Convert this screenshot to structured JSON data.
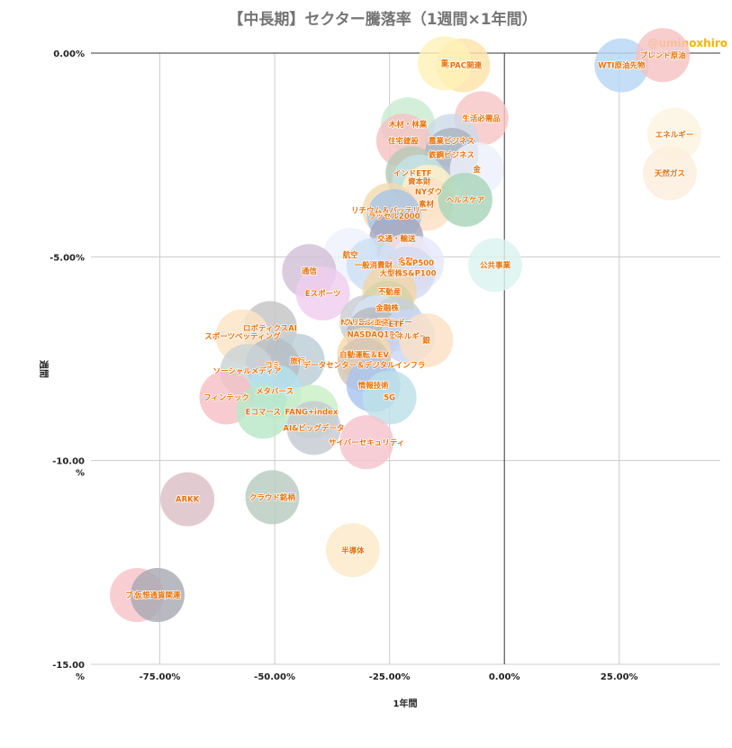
{
  "watermark": "@uminoxhiro",
  "chart_data": {
    "type": "scatter",
    "title": "【中長期】セクター騰落率（1週間×1年間）",
    "xlabel": "1年間",
    "ylabel": "週間",
    "xlim": [
      -0.9,
      0.47
    ],
    "ylim": [
      -15,
      0
    ],
    "x_ticks": [
      {
        "value": -0.75,
        "label": "-75.00%"
      },
      {
        "value": -0.5,
        "label": "-50.00%"
      },
      {
        "value": -0.25,
        "label": "-25.00%"
      },
      {
        "value": 0.0,
        "label": "0.00%"
      },
      {
        "value": 0.25,
        "label": "25.00%"
      }
    ],
    "y_ticks": [
      {
        "value": 0,
        "label": [
          "0.00%"
        ]
      },
      {
        "value": -5,
        "label": [
          "-5.00%"
        ]
      },
      {
        "value": -10,
        "label": [
          "-10.00",
          "%"
        ]
      },
      {
        "value": -15,
        "label": [
          "-15.00",
          "%"
        ]
      }
    ],
    "points": [
      {
        "label": "SPAC関連",
        "x": -0.09,
        "y": -0.3,
        "color": "#ffe3a8"
      },
      {
        "label": "重",
        "x": -0.13,
        "y": -0.25,
        "color": "#fff1b8"
      },
      {
        "label": "WTI原油先物",
        "x": 0.255,
        "y": -0.3,
        "color": "#b7d7f7"
      },
      {
        "label": "ブレント原油",
        "x": 0.345,
        "y": -0.05,
        "color": "#f5c2c2"
      },
      {
        "label": "木材・林業",
        "x": -0.21,
        "y": -1.75,
        "color": "#c9ebd2"
      },
      {
        "label": "生活必需品",
        "x": -0.05,
        "y": -1.6,
        "color": "#f8c6c6"
      },
      {
        "label": "エネルギー",
        "x": 0.37,
        "y": -2.0,
        "color": "#fdf4e0"
      },
      {
        "label": "農業ビジネス",
        "x": -0.115,
        "y": -2.15,
        "color": "#cddae6"
      },
      {
        "label": "住宅建設",
        "x": -0.22,
        "y": -2.15,
        "color": "#f5c2c2"
      },
      {
        "label": "鉄鋼ビジネス",
        "x": -0.115,
        "y": -2.5,
        "color": "#a8b3bf"
      },
      {
        "label": "金",
        "x": -0.06,
        "y": -2.85,
        "color": "#eef0fb"
      },
      {
        "label": "天然ガス",
        "x": 0.36,
        "y": -2.95,
        "color": "#fdeedd"
      },
      {
        "label": "インドETF",
        "x": -0.2,
        "y": -2.95,
        "color": "#b7c9b7"
      },
      {
        "label": "資本財",
        "x": -0.185,
        "y": -3.15,
        "color": "#c5e3e6"
      },
      {
        "label": "NYダウ",
        "x": -0.165,
        "y": -3.4,
        "color": "#fff1c7"
      },
      {
        "label": "素材",
        "x": -0.17,
        "y": -3.7,
        "color": "#fde0c6"
      },
      {
        "label": "ヘルスケア",
        "x": -0.085,
        "y": -3.6,
        "color": "#a8d4b8"
      },
      {
        "label": "リチウム＆バッテリー",
        "x": -0.25,
        "y": -3.85,
        "color": "#f2dcb0"
      },
      {
        "label": "ラッセル2000",
        "x": -0.24,
        "y": -4.0,
        "color": "#a8c4e8"
      },
      {
        "label": "交通・輸送",
        "x": -0.235,
        "y": -4.55,
        "color": "#a3a7bf"
      },
      {
        "label": "航空",
        "x": -0.335,
        "y": -4.95,
        "color": "#eef1fb"
      },
      {
        "label": "金融",
        "x": -0.215,
        "y": -5.1,
        "color": "#fde2e2"
      },
      {
        "label": "S&P500",
        "x": -0.19,
        "y": -5.15,
        "color": "#e6e9fb"
      },
      {
        "label": "一般消費財",
        "x": -0.285,
        "y": -5.2,
        "color": "#cde0f5"
      },
      {
        "label": "公共事業",
        "x": -0.02,
        "y": -5.2,
        "color": "#daf3ef"
      },
      {
        "label": "大型株S&P100",
        "x": -0.21,
        "y": -5.4,
        "color": "#d7dbef"
      },
      {
        "label": "通信",
        "x": -0.425,
        "y": -5.35,
        "color": "#d2bfd7"
      },
      {
        "label": "不動産",
        "x": -0.25,
        "y": -5.85,
        "color": "#f2d5a8"
      },
      {
        "label": "Eスポーツ",
        "x": -0.395,
        "y": -5.9,
        "color": "#f0cdef"
      },
      {
        "label": "金融株",
        "x": -0.255,
        "y": -6.25,
        "color": "#d7d3a6"
      },
      {
        "label": "NASDAQ総合",
        "x": -0.3,
        "y": -6.6,
        "color": "#c9cdd2"
      },
      {
        "label": "クリーンエネルギー",
        "x": -0.275,
        "y": -6.6,
        "color": "#d7e3f7"
      },
      {
        "label": "ETF",
        "x": -0.235,
        "y": -6.65,
        "color": "#c5d1d6"
      },
      {
        "label": "ロボティクスAI",
        "x": -0.51,
        "y": -6.75,
        "color": "#c5c5c5"
      },
      {
        "label": "NASDAQ100",
        "x": -0.285,
        "y": -6.9,
        "color": "#b7bbc0"
      },
      {
        "label": "エネルギー",
        "x": -0.21,
        "y": -6.95,
        "color": "#cad7f5"
      },
      {
        "label": "銀",
        "x": -0.17,
        "y": -7.05,
        "color": "#fbe1c4"
      },
      {
        "label": "スポーツベッティング",
        "x": -0.57,
        "y": -6.95,
        "color": "#fde4c6"
      },
      {
        "label": "自動運転＆EV",
        "x": -0.305,
        "y": -7.4,
        "color": "#f7d9a8"
      },
      {
        "label": "旅行",
        "x": -0.45,
        "y": -7.55,
        "color": "#bccdd6"
      },
      {
        "label": "データセンター＆デジタルインフラ",
        "x": -0.305,
        "y": -7.65,
        "color": "#d4c4b4"
      },
      {
        "label": "コミ",
        "x": -0.505,
        "y": -7.65,
        "color": "#b6bdc5"
      },
      {
        "label": "ソーシャルメディア",
        "x": -0.56,
        "y": -7.8,
        "color": "#c9d3d6"
      },
      {
        "label": "情報技術",
        "x": -0.285,
        "y": -8.15,
        "color": "#a8c5f0"
      },
      {
        "label": "メタバース",
        "x": -0.5,
        "y": -8.3,
        "color": "#b4e3ef"
      },
      {
        "label": "5G",
        "x": -0.25,
        "y": -8.45,
        "color": "#bde1e8"
      },
      {
        "label": "フィンテック",
        "x": -0.605,
        "y": -8.45,
        "color": "#f5c0c6"
      },
      {
        "label": "Eコマース",
        "x": -0.525,
        "y": -8.8,
        "color": "#b8e8c6"
      },
      {
        "label": "FANG+index",
        "x": -0.42,
        "y": -8.8,
        "color": "#c9efc6"
      },
      {
        "label": "AI&ビッグデータ",
        "x": -0.415,
        "y": -9.2,
        "color": "#c6c9d2"
      },
      {
        "label": "サイバーセキュリティ",
        "x": -0.3,
        "y": -9.55,
        "color": "#f7c3cd"
      },
      {
        "label": "ARKK",
        "x": -0.69,
        "y": -10.95,
        "color": "#dcc0c6"
      },
      {
        "label": "クラウド銘柄",
        "x": -0.505,
        "y": -10.9,
        "color": "#b8ccc0"
      },
      {
        "label": "半導体",
        "x": -0.33,
        "y": -12.2,
        "color": "#fde9c9"
      },
      {
        "label": "ブロッ",
        "x": -0.8,
        "y": -13.3,
        "color": "#f7c3c9"
      },
      {
        "label": "仮想通貨関連",
        "x": -0.755,
        "y": -13.3,
        "color": "#a8aab3"
      }
    ]
  }
}
